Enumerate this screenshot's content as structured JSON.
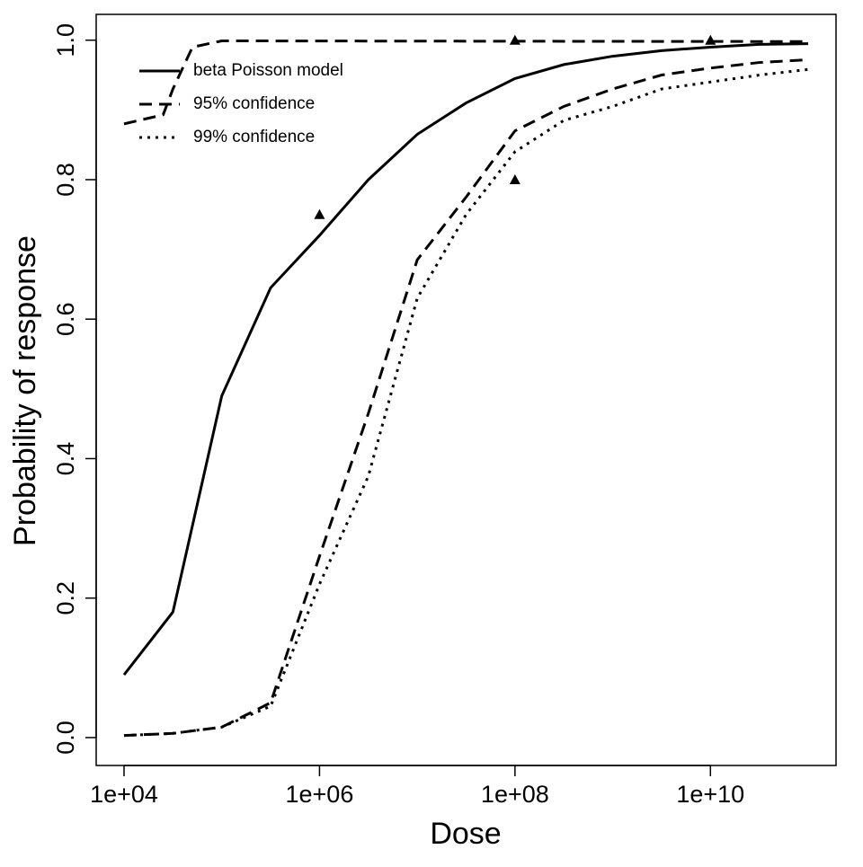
{
  "chart_data": {
    "type": "line",
    "xlabel": "Dose",
    "ylabel": "Probability of response",
    "xlog": true,
    "xlim": [
      5188,
      192752491800
    ],
    "ylim": [
      -0.04,
      1.037
    ],
    "xticks": [
      {
        "value": 10000,
        "label": "1e+04"
      },
      {
        "value": 1000000,
        "label": "1e+06"
      },
      {
        "value": 100000000,
        "label": "1e+08"
      },
      {
        "value": 10000000000,
        "label": "1e+10"
      }
    ],
    "yticks": [
      {
        "value": 0,
        "label": "0.0"
      },
      {
        "value": 0.2,
        "label": "0.2"
      },
      {
        "value": 0.4,
        "label": "0.4"
      },
      {
        "value": 0.6,
        "label": "0.6"
      },
      {
        "value": 0.8,
        "label": "0.8"
      },
      {
        "value": 1,
        "label": "1.0"
      }
    ],
    "series": [
      {
        "name": "beta Poisson model",
        "color": "#000000",
        "dash": "solid",
        "x": [
          10000,
          31623,
          100000,
          316228,
          1000000,
          3162278,
          10000000,
          31622777,
          100000000,
          316227766,
          1000000000,
          3162277660,
          10000000000,
          31622776602,
          100000000000
        ],
        "values": [
          0.09,
          0.18,
          0.49,
          0.645,
          0.72,
          0.8,
          0.865,
          0.91,
          0.945,
          0.965,
          0.977,
          0.985,
          0.99,
          0.994,
          0.995
        ]
      },
      {
        "name": "95% confidence",
        "color": "#000000",
        "dash": "dashed",
        "x": [
          10000,
          31623,
          100000,
          316228,
          1000000,
          3162278,
          10000000,
          31622777,
          100000000,
          316227766,
          1000000000,
          3162277660,
          10000000000,
          31622776602,
          100000000000
        ],
        "values": [
          0.003,
          0.006,
          0.015,
          0.05,
          0.26,
          0.465,
          0.685,
          0.775,
          0.87,
          0.905,
          0.93,
          0.95,
          0.96,
          0.968,
          0.972
        ]
      },
      {
        "color": "#000000",
        "dash": "dashed",
        "x": [
          10000,
          25119,
          31623,
          50119,
          100000,
          100000000000
        ],
        "values": [
          0.88,
          0.893,
          0.93,
          0.99,
          0.999,
          0.998
        ]
      },
      {
        "name": "99% confidence",
        "color": "#000000",
        "dash": "dotted",
        "x": [
          10000,
          31623,
          100000,
          316228,
          1000000,
          3162278,
          10000000,
          31622777,
          100000000,
          316227766,
          1000000000,
          3162277660,
          10000000000,
          31622776602,
          100000000000
        ],
        "values": [
          0.003,
          0.006,
          0.015,
          0.045,
          0.22,
          0.375,
          0.63,
          0.75,
          0.84,
          0.885,
          0.905,
          0.93,
          0.94,
          0.95,
          0.958
        ]
      }
    ],
    "points": {
      "x": [
        1000000,
        100000000,
        100000000,
        10000000000
      ],
      "values": [
        0.75,
        1.0,
        0.8,
        1.0
      ],
      "color": "#000000"
    }
  }
}
